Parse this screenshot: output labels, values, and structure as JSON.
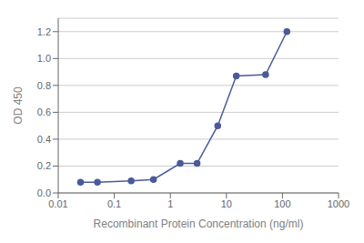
{
  "chart_data": {
    "type": "line",
    "x": [
      0.025,
      0.05,
      0.2,
      0.5,
      1.5,
      3.0,
      7.0,
      15.0,
      50.0,
      120.0
    ],
    "values": [
      0.08,
      0.08,
      0.09,
      0.1,
      0.22,
      0.22,
      0.5,
      0.87,
      0.88,
      1.2
    ],
    "color": "#4a5a9a",
    "marker": "circle",
    "xlabel": "Recombinant Protein Concentration (ng/ml)",
    "ylabel": "OD 450",
    "xlim": [
      0.01,
      1000
    ],
    "ylim": [
      0.0,
      1.3
    ],
    "xticks": [
      0.01,
      0.1,
      1,
      10,
      100,
      1000
    ],
    "yticks": [
      {
        "value": 0.0,
        "label": "0.0"
      },
      0.2,
      0.4,
      0.6,
      0.8,
      {
        "value": 1.0,
        "label": "1.0"
      },
      1.2
    ],
    "log": "x",
    "grid": "y"
  }
}
